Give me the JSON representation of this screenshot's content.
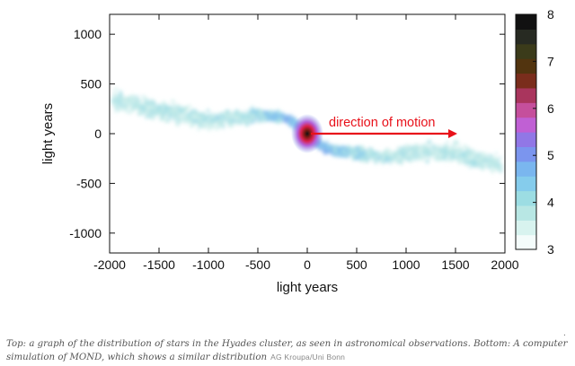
{
  "chart_data": {
    "type": "heatmap",
    "title": "",
    "xlabel": "light years",
    "ylabel": "light years",
    "xlim": [
      -2000,
      2000
    ],
    "ylim": [
      -1200,
      1200
    ],
    "xticks": [
      -2000,
      -1500,
      -1000,
      -500,
      0,
      500,
      1000,
      1500,
      2000
    ],
    "yticks": [
      -1000,
      -500,
      0,
      500,
      1000
    ],
    "grid": false,
    "colorbar": {
      "min": 3,
      "max": 8,
      "tick_labels": [
        "3",
        "4",
        "5",
        "6",
        "7",
        "8"
      ],
      "colors": [
        "#f4fcfb",
        "#d8f3ef",
        "#b8e7e4",
        "#9cdde3",
        "#85ccec",
        "#7ab6ef",
        "#7b95ee",
        "#9177e6",
        "#c060d4",
        "#c54f9c",
        "#a9355d",
        "#7a2d1c",
        "#52340f",
        "#3b3b1a",
        "#272a22",
        "#111111"
      ]
    },
    "density_ridge": {
      "x": [
        -1980,
        -1800,
        -1500,
        -1250,
        -1000,
        -750,
        -500,
        -300,
        -150,
        -50,
        0,
        50,
        150,
        300,
        500,
        750,
        1000,
        1250,
        1500,
        1750,
        1980
      ],
      "y": [
        330,
        300,
        240,
        180,
        120,
        150,
        190,
        170,
        120,
        60,
        0,
        -60,
        -130,
        -170,
        -200,
        -230,
        -200,
        -170,
        -200,
        -260,
        -320
      ]
    },
    "cluster_center": {
      "x": 0,
      "y": 0
    },
    "annotation": {
      "text": "direction of motion",
      "arrow_from": [
        0,
        0
      ],
      "arrow_to": [
        1500,
        0
      ],
      "color": "#e8111a"
    }
  },
  "caption": {
    "text": "Top: a graph of the distribution of stars in the Hyades cluster, as seen in astronomical observations. Bottom: A computer simulation of MOND, which shows a similar distribution",
    "credit": "AG Kroupa/Uni Bonn"
  }
}
